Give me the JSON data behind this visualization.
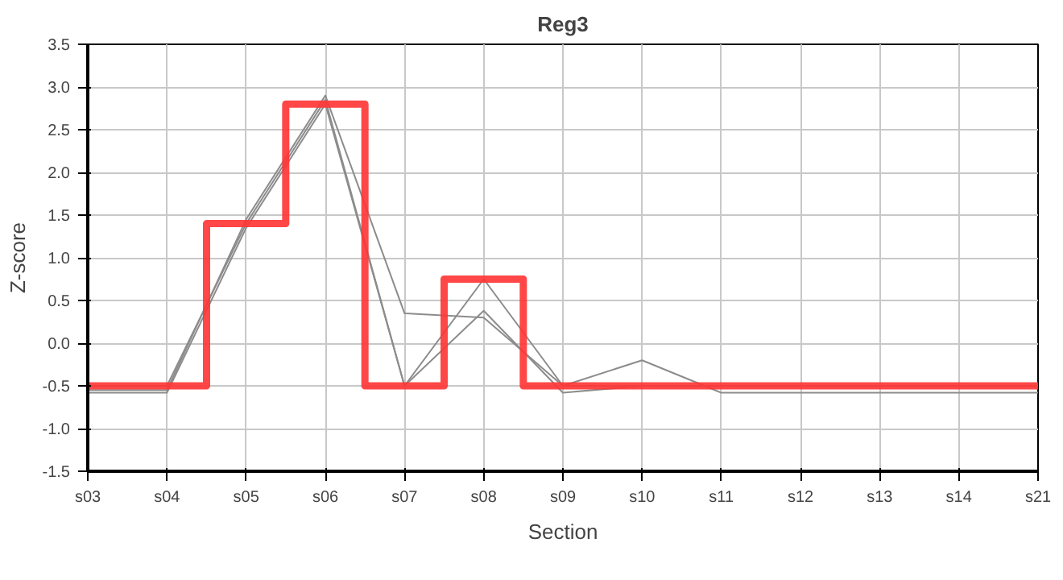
{
  "chart_data": {
    "type": "line",
    "title": "Reg3",
    "xlabel": "Section",
    "ylabel": "Z-score",
    "categories": [
      "s03",
      "s04",
      "s05",
      "s06",
      "s07",
      "s08",
      "s09",
      "s10",
      "s11",
      "s12",
      "s13",
      "s14",
      "s21"
    ],
    "ylim": [
      -1.5,
      3.5
    ],
    "yticks": [
      -1.5,
      {
        "value": -1,
        "label": "-1.0"
      },
      -0.5,
      {
        "value": 0,
        "label": "0.0"
      },
      0.5,
      {
        "value": 1,
        "label": "1.0"
      },
      1.5,
      {
        "value": 2,
        "label": "2.0"
      },
      2.5,
      {
        "value": 3,
        "label": "3.0"
      },
      3.5
    ],
    "grid": true,
    "marker": "none",
    "line_style": "solid",
    "series": [
      {
        "color": "#8c8c8c",
        "values": [
          -0.55,
          -0.55,
          1.45,
          2.9,
          0.35,
          0.3,
          -0.5,
          -0.2,
          -0.58,
          -0.58,
          -0.58,
          -0.58,
          -0.58
        ]
      },
      {
        "color": "#8c8c8c",
        "values": [
          -0.5,
          -0.5,
          1.4,
          2.85,
          -0.5,
          0.75,
          -0.5,
          -0.5,
          -0.5,
          -0.5,
          -0.5,
          -0.5,
          -0.5
        ]
      },
      {
        "color": "#8c8c8c",
        "values": [
          -0.58,
          -0.58,
          1.35,
          2.8,
          -0.5,
          0.38,
          -0.58,
          -0.5,
          -0.5,
          -0.5,
          -0.5,
          -0.5,
          -0.5
        ]
      },
      {
        "type": "step",
        "color": "#ff3333",
        "values": [
          -0.5,
          -0.5,
          1.4,
          2.8,
          -0.5,
          0.75,
          -0.5,
          -0.5,
          -0.5,
          -0.5,
          -0.5,
          -0.5,
          -0.5
        ]
      }
    ]
  }
}
